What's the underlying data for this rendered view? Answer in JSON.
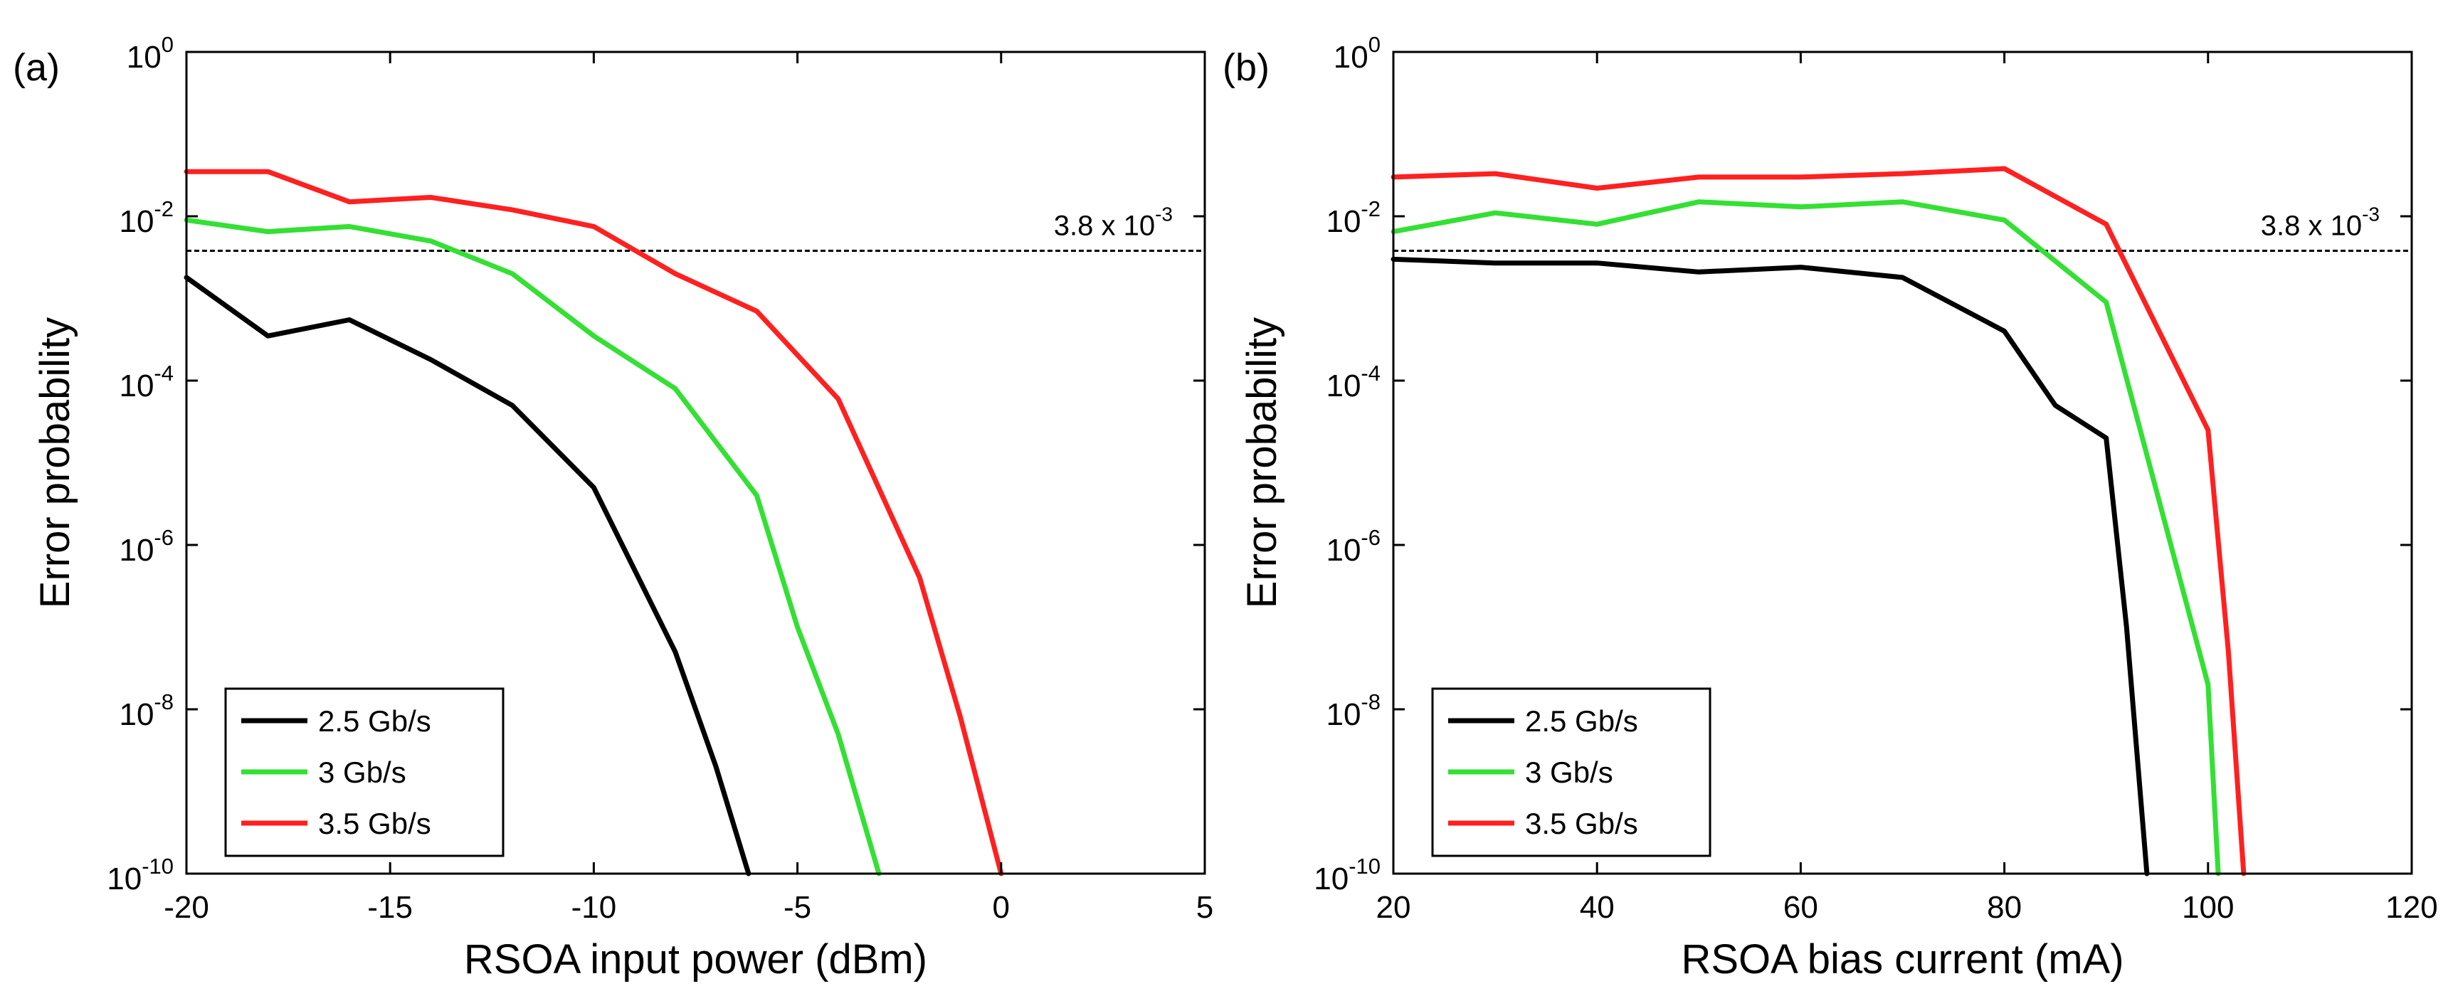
{
  "figure": {
    "description": ""
  },
  "chart_data": [
    {
      "type": "line",
      "panel_label": "(a)",
      "xlabel": "RSOA input power (dBm)",
      "ylabel": "Error  probability",
      "xscale": "linear",
      "yscale": "log",
      "xlim": [
        -20,
        5
      ],
      "ylim": [
        1e-10,
        1
      ],
      "xticks": [
        -20,
        -15,
        -10,
        -5,
        0,
        5
      ],
      "xtick_labels": [
        "-20",
        "-15",
        "-10",
        "-5",
        "0",
        "5"
      ],
      "yticks": [
        1e-10,
        1e-08,
        1e-06,
        0.0001,
        0.01,
        1
      ],
      "ytick_labels": [
        {
          "base": "10",
          "exp": "-10"
        },
        {
          "base": "10",
          "exp": "-8"
        },
        {
          "base": "10",
          "exp": "-6"
        },
        {
          "base": "10",
          "exp": "-4"
        },
        {
          "base": "10",
          "exp": "-2"
        },
        {
          "base": "10",
          "exp": "0"
        }
      ],
      "grid": false,
      "legend_position": "bottom-left",
      "threshold": {
        "value": 0.0038,
        "label_main": "3.8 x 10",
        "label_exp": "-3",
        "color": "#000000"
      },
      "series": [
        {
          "name": "2.5 Gb/s",
          "color": "#000000",
          "x": [
            -20,
            -18,
            -16,
            -14,
            -12,
            -10,
            -9,
            -8,
            -7,
            -6.2
          ],
          "y": [
            0.0018,
            0.00035,
            0.00055,
            0.00018,
            5e-05,
            5e-06,
            5e-07,
            5e-08,
            2e-09,
            1e-10
          ]
        },
        {
          "name": "3 Gb/s",
          "color": "#33e033",
          "x": [
            -20,
            -18,
            -16,
            -14,
            -12,
            -10,
            -8,
            -6,
            -5,
            -4,
            -3
          ],
          "y": [
            0.009,
            0.0065,
            0.0075,
            0.005,
            0.002,
            0.00035,
            8e-05,
            4e-06,
            1e-07,
            5e-09,
            1e-10
          ]
        },
        {
          "name": "3.5 Gb/s",
          "color": "#ff2020",
          "x": [
            -20,
            -18,
            -16,
            -14,
            -12,
            -10,
            -8,
            -6,
            -4,
            -2,
            -1,
            0
          ],
          "y": [
            0.035,
            0.035,
            0.015,
            0.017,
            0.012,
            0.0075,
            0.002,
            0.0007,
            6e-05,
            4e-07,
            8e-09,
            1e-10
          ]
        }
      ]
    },
    {
      "type": "line",
      "panel_label": "(b)",
      "xlabel": "RSOA bias current (mA)",
      "ylabel": "Error  probability",
      "xscale": "linear",
      "yscale": "log",
      "xlim": [
        20,
        120
      ],
      "ylim": [
        1e-10,
        1
      ],
      "xticks": [
        20,
        40,
        60,
        80,
        100,
        120
      ],
      "xtick_labels": [
        "20",
        "40",
        "60",
        "80",
        "100",
        "120"
      ],
      "yticks": [
        1e-10,
        1e-08,
        1e-06,
        0.0001,
        0.01,
        1
      ],
      "ytick_labels": [
        {
          "base": "10",
          "exp": "-10"
        },
        {
          "base": "10",
          "exp": "-8"
        },
        {
          "base": "10",
          "exp": "-6"
        },
        {
          "base": "10",
          "exp": "-4"
        },
        {
          "base": "10",
          "exp": "-2"
        },
        {
          "base": "10",
          "exp": "0"
        }
      ],
      "grid": false,
      "legend_position": "bottom-left",
      "threshold": {
        "value": 0.0038,
        "label_main": "3.8 x 10",
        "label_exp": "-3",
        "color": "#000000"
      },
      "series": [
        {
          "name": "2.5 Gb/s",
          "color": "#000000",
          "x": [
            20,
            30,
            40,
            50,
            60,
            70,
            80,
            85,
            90,
            92,
            94
          ],
          "y": [
            0.003,
            0.0027,
            0.0027,
            0.0021,
            0.0024,
            0.0018,
            0.0004,
            5e-05,
            2e-05,
            1e-07,
            1e-10
          ]
        },
        {
          "name": "3 Gb/s",
          "color": "#33e033",
          "x": [
            20,
            30,
            40,
            50,
            60,
            70,
            80,
            90,
            100,
            101
          ],
          "y": [
            0.0065,
            0.011,
            0.008,
            0.015,
            0.013,
            0.015,
            0.009,
            0.0009,
            2e-08,
            1e-10
          ]
        },
        {
          "name": "3.5 Gb/s",
          "color": "#ff2020",
          "x": [
            20,
            30,
            40,
            50,
            60,
            70,
            80,
            90,
            100,
            102,
            103.5
          ],
          "y": [
            0.03,
            0.033,
            0.022,
            0.03,
            0.03,
            0.033,
            0.038,
            0.008,
            2.5e-05,
            5e-08,
            1e-10
          ]
        }
      ]
    }
  ]
}
